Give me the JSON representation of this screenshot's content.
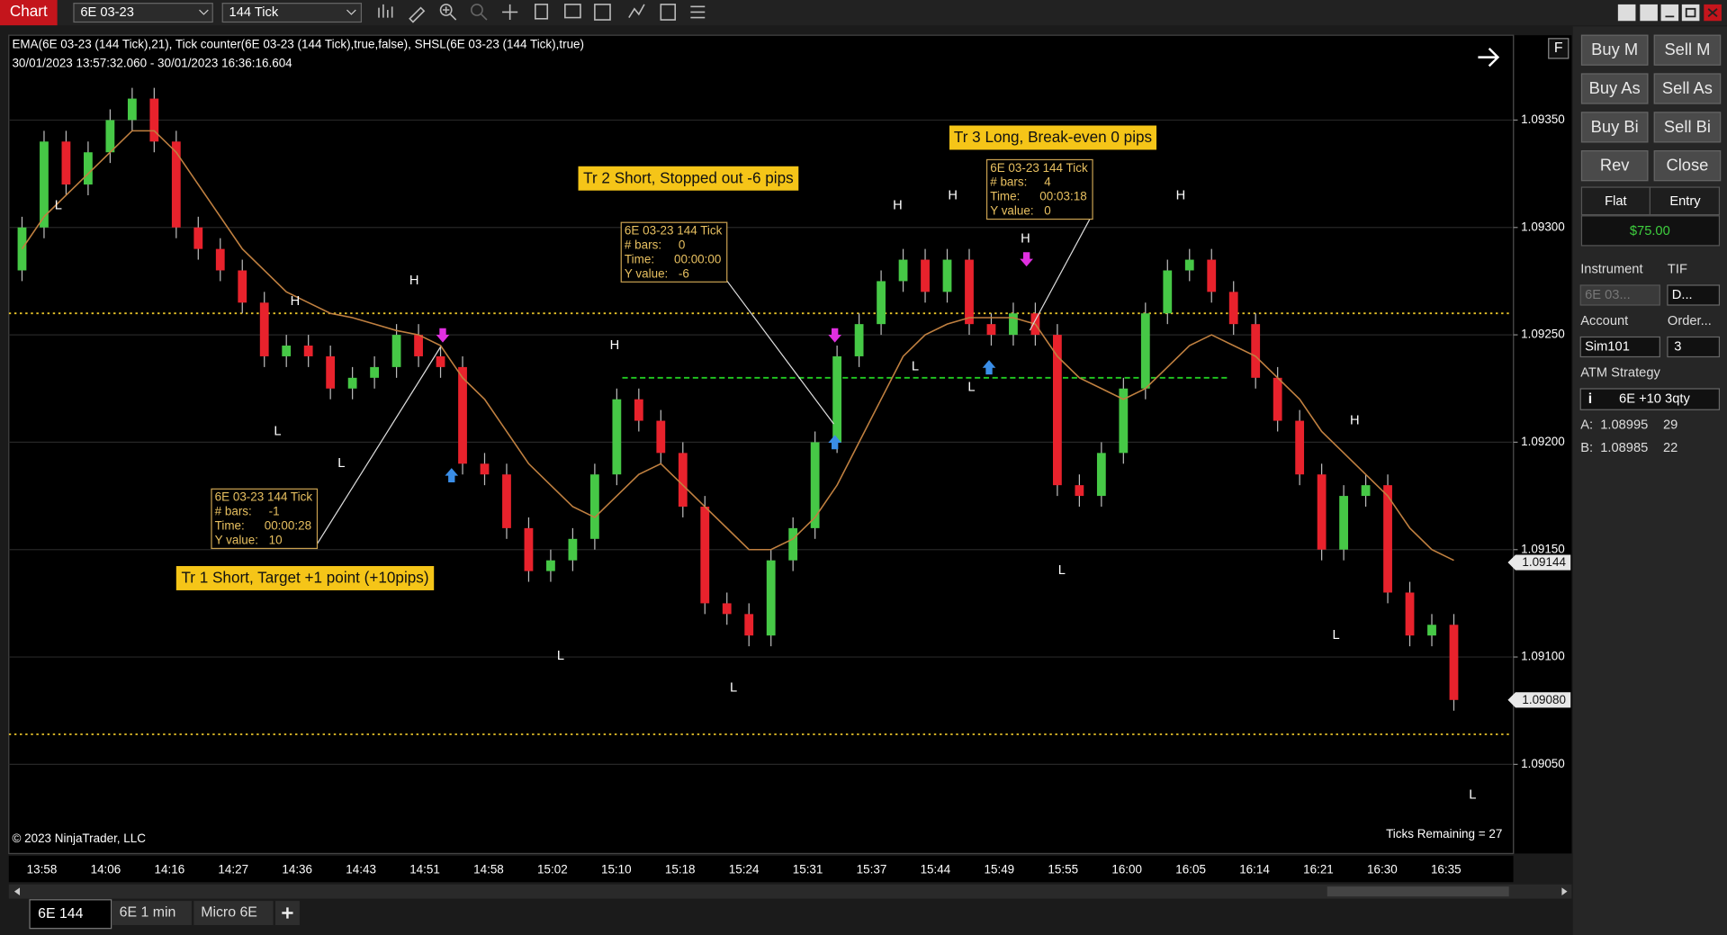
{
  "toolbar": {
    "title": "Chart",
    "instrument": "6E 03-23",
    "interval": "144 Tick"
  },
  "chart_header": {
    "indicators": "EMA(6E 03-23 (144 Tick),21), Tick counter(6E 03-23 (144 Tick),true,false), SHSL(6E 03-23 (144 Tick),true)",
    "range": "30/01/2023 13:57:32.060 - 30/01/2023 16:36:16.604"
  },
  "chart_data": {
    "type": "candlestick",
    "open": [
      1.0928,
      1.093,
      1.0934,
      1.0932,
      1.09335,
      1.0935,
      1.0936,
      1.0934,
      1.093,
      1.0929,
      1.0928,
      1.09265,
      1.0924,
      1.09245,
      1.0924,
      1.09225,
      1.0923,
      1.09235,
      1.0925,
      1.0924,
      1.09235,
      1.0919,
      1.09185,
      1.0916,
      1.0914,
      1.09145,
      1.09155,
      1.09185,
      1.0922,
      1.0921,
      1.09195,
      1.0917,
      1.09125,
      1.0912,
      1.0911,
      1.09145,
      1.0916,
      1.092,
      1.0924,
      1.09255,
      1.09275,
      1.09285,
      1.0927,
      1.09285,
      1.09255,
      1.0925,
      1.0926,
      1.0925,
      1.0918,
      1.09175,
      1.09195,
      1.09225,
      1.0926,
      1.0928,
      1.09285,
      1.0927,
      1.09255,
      1.0923,
      1.0921,
      1.09185,
      1.0915,
      1.09175,
      1.0918,
      1.0913,
      1.0911,
      1.09115
    ],
    "high": [
      1.09305,
      1.09345,
      1.09345,
      1.0934,
      1.09355,
      1.09365,
      1.09365,
      1.09345,
      1.09305,
      1.09295,
      1.09285,
      1.0927,
      1.0925,
      1.0925,
      1.09245,
      1.09235,
      1.0924,
      1.09255,
      1.09255,
      1.09245,
      1.0924,
      1.09195,
      1.0919,
      1.09165,
      1.0915,
      1.0916,
      1.0919,
      1.09225,
      1.09225,
      1.09215,
      1.092,
      1.09175,
      1.0913,
      1.09125,
      1.0915,
      1.09165,
      1.09205,
      1.09245,
      1.0926,
      1.0928,
      1.0929,
      1.0929,
      1.0929,
      1.0929,
      1.0926,
      1.09265,
      1.09265,
      1.09255,
      1.09185,
      1.092,
      1.0923,
      1.09265,
      1.09285,
      1.0929,
      1.0929,
      1.09275,
      1.0926,
      1.09235,
      1.09215,
      1.0919,
      1.0918,
      1.09185,
      1.09185,
      1.09135,
      1.0912,
      1.0912
    ],
    "low": [
      1.09275,
      1.09295,
      1.09315,
      1.09315,
      1.0933,
      1.09345,
      1.09335,
      1.09295,
      1.09285,
      1.09275,
      1.0926,
      1.09235,
      1.09235,
      1.09235,
      1.0922,
      1.0922,
      1.09225,
      1.0923,
      1.09235,
      1.0923,
      1.09185,
      1.0918,
      1.09155,
      1.09135,
      1.09135,
      1.0914,
      1.0915,
      1.0918,
      1.09205,
      1.0919,
      1.09165,
      1.0912,
      1.09115,
      1.09105,
      1.09105,
      1.0914,
      1.09155,
      1.09195,
      1.09235,
      1.0925,
      1.0927,
      1.09265,
      1.09265,
      1.0925,
      1.09245,
      1.09245,
      1.09245,
      1.09175,
      1.0917,
      1.0917,
      1.0919,
      1.0922,
      1.09255,
      1.09275,
      1.09265,
      1.0925,
      1.09225,
      1.09205,
      1.0918,
      1.09145,
      1.09145,
      1.0917,
      1.09125,
      1.09105,
      1.09105,
      1.09075
    ],
    "close": [
      1.093,
      1.0934,
      1.0932,
      1.09335,
      1.0935,
      1.0936,
      1.0934,
      1.093,
      1.0929,
      1.0928,
      1.09265,
      1.0924,
      1.09245,
      1.0924,
      1.09225,
      1.0923,
      1.09235,
      1.0925,
      1.0924,
      1.09235,
      1.0919,
      1.09185,
      1.0916,
      1.0914,
      1.09145,
      1.09155,
      1.09185,
      1.0922,
      1.0921,
      1.09195,
      1.0917,
      1.09125,
      1.0912,
      1.0911,
      1.09145,
      1.0916,
      1.092,
      1.0924,
      1.09255,
      1.09275,
      1.09285,
      1.0927,
      1.09285,
      1.09255,
      1.0925,
      1.0926,
      1.0925,
      1.0918,
      1.09175,
      1.09195,
      1.09225,
      1.0926,
      1.0928,
      1.09285,
      1.0927,
      1.09255,
      1.0923,
      1.0921,
      1.09185,
      1.0915,
      1.09175,
      1.0918,
      1.0913,
      1.0911,
      1.09115,
      1.0908
    ],
    "ema": [
      1.0929,
      1.09305,
      1.09315,
      1.09325,
      1.09335,
      1.09345,
      1.09345,
      1.09335,
      1.0932,
      1.09305,
      1.0929,
      1.0928,
      1.0927,
      1.09265,
      1.0926,
      1.09258,
      1.09255,
      1.09252,
      1.0925,
      1.09245,
      1.0923,
      1.0922,
      1.09205,
      1.0919,
      1.0918,
      1.0917,
      1.09165,
      1.09175,
      1.09185,
      1.0919,
      1.0918,
      1.0917,
      1.0916,
      1.0915,
      1.0915,
      1.09155,
      1.09165,
      1.0918,
      1.092,
      1.0922,
      1.0924,
      1.0925,
      1.09255,
      1.09258,
      1.09258,
      1.09258,
      1.09255,
      1.0924,
      1.0923,
      1.09225,
      1.0922,
      1.09225,
      1.09235,
      1.09245,
      1.0925,
      1.09245,
      1.0924,
      1.0923,
      1.0922,
      1.09205,
      1.09195,
      1.09185,
      1.09175,
      1.0916,
      1.0915,
      1.09145
    ],
    "up_color": "#46c846",
    "down_color": "#e8222c",
    "ema_color": "#c08040",
    "ylim": [
      1.090085,
      1.093895
    ],
    "yticks": [
      {
        "value": 1.0905,
        "label": "1.09050"
      },
      {
        "value": 1.091,
        "label": "1.09100"
      },
      {
        "value": 1.0915,
        "label": "1.09150"
      },
      {
        "value": 1.092,
        "label": "1.09200"
      },
      {
        "value": 1.0925,
        "label": "1.09250"
      },
      {
        "value": 1.093,
        "label": "1.09300"
      },
      {
        "value": 1.0935,
        "label": "1.09350"
      }
    ],
    "grid": true,
    "price_markers": [
      {
        "value": 1.09144,
        "label": "1.09144"
      },
      {
        "value": 1.0908,
        "label": "1.09080"
      }
    ],
    "hlines": [
      {
        "value": 1.0926,
        "color": "#e6c229",
        "style": "dotted"
      },
      {
        "value": 1.09064,
        "color": "#e6c229",
        "style": "dotted"
      },
      {
        "value": 1.0923,
        "color": "#22cc22",
        "style": "dashed"
      }
    ],
    "xticks": [
      "13:58",
      "14:06",
      "14:16",
      "14:27",
      "14:36",
      "14:43",
      "14:51",
      "14:58",
      "15:02",
      "15:10",
      "15:18",
      "15:24",
      "15:31",
      "15:37",
      "15:44",
      "15:49",
      "15:55",
      "16:00",
      "16:05",
      "16:14",
      "16:21",
      "16:30",
      "16:35"
    ],
    "swing_labels": [
      "L",
      "H",
      "H",
      "L",
      "L",
      "H",
      "L",
      "L",
      "H",
      "H",
      "H",
      "L",
      "L",
      "H",
      "L",
      "H",
      "L",
      "L"
    ],
    "annotations": [
      "Tr 1 Short, Target +1 point (+10pips)",
      "Tr 2 Short, Stopped out -6 pips",
      "Tr 3 Long, Break-even 0 pips"
    ],
    "rulers": [
      {
        "title": "6E 03-23 144 Tick",
        "rows": [
          [
            "# bars:",
            "-1"
          ],
          [
            "Time:",
            "00:00:28"
          ],
          [
            "Y value:",
            "10"
          ]
        ]
      },
      {
        "title": "6E 03-23 144 Tick",
        "rows": [
          [
            "# bars:",
            "0"
          ],
          [
            "Time:",
            "00:00:00"
          ],
          [
            "Y value:",
            "-6"
          ]
        ]
      },
      {
        "title": "6E 03-23 144 Tick",
        "rows": [
          [
            "# bars:",
            "4"
          ],
          [
            "Time:",
            "00:03:18"
          ],
          [
            "Y value:",
            "0"
          ]
        ]
      }
    ],
    "copyright": "© 2023 NinjaTrader, LLC",
    "ticks_remaining": "Ticks Remaining = 27",
    "data_box": "F"
  },
  "order_panel": {
    "buttons": [
      "Buy M",
      "Sell M",
      "Buy As",
      "Sell As",
      "Buy Bi",
      "Sell Bi",
      "Rev",
      "Close"
    ],
    "position": "Flat",
    "entry": "Entry",
    "pnl": "$75.00",
    "instrument_label": "Instrument",
    "tif_label": "TIF",
    "instrument": "6E 03...",
    "tif": "D...",
    "account_label": "Account",
    "order_label": "Order...",
    "account": "Sim101",
    "qty": "3",
    "atm_label": "ATM Strategy",
    "atm": "6E +10 3qty",
    "ask": {
      "label": "A:",
      "price": "1.08995",
      "size": "29"
    },
    "bid": {
      "label": "B:",
      "price": "1.08985",
      "size": "22"
    }
  },
  "tabs": [
    "6E 144",
    "6E 1 min",
    "Micro 6E"
  ]
}
